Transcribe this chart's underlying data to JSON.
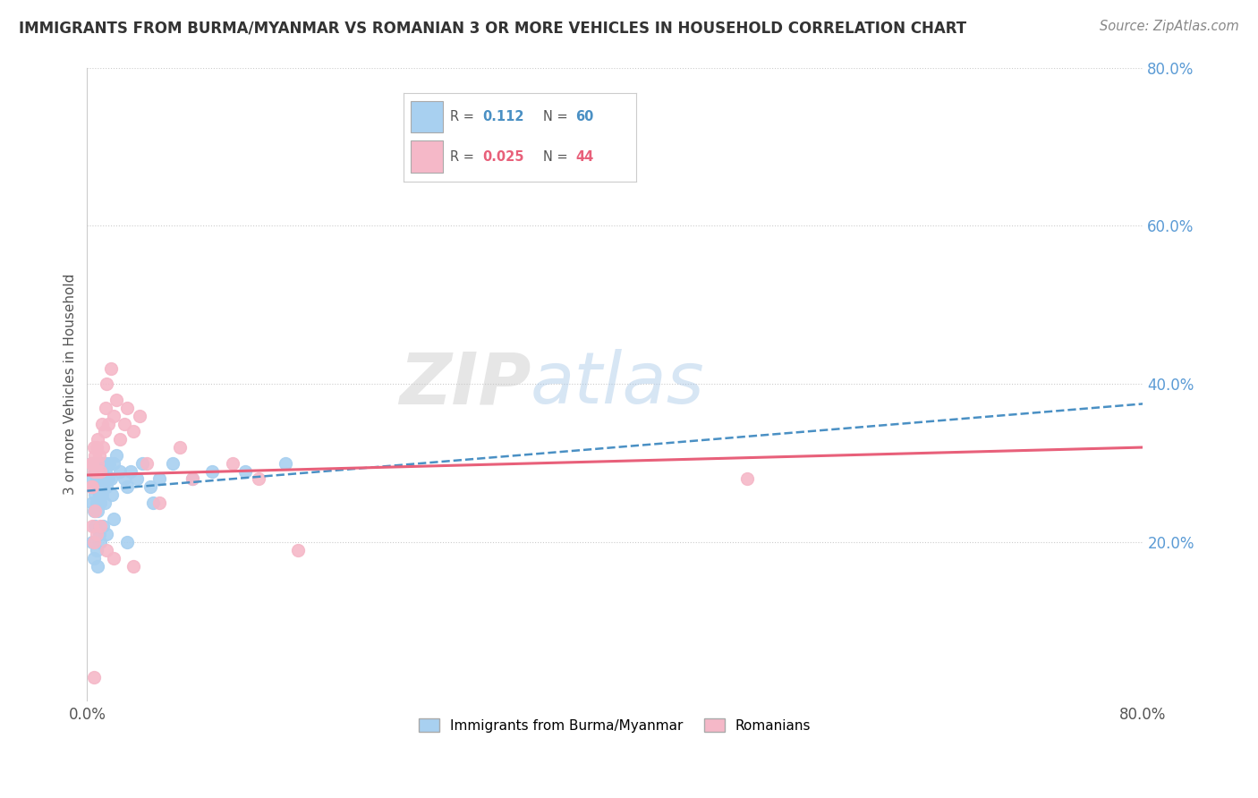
{
  "title": "IMMIGRANTS FROM BURMA/MYANMAR VS ROMANIAN 3 OR MORE VEHICLES IN HOUSEHOLD CORRELATION CHART",
  "source": "Source: ZipAtlas.com",
  "ylabel": "3 or more Vehicles in Household",
  "xlim": [
    0,
    0.8
  ],
  "ylim": [
    0,
    0.8
  ],
  "blue_R": 0.112,
  "blue_N": 60,
  "pink_R": 0.025,
  "pink_N": 44,
  "blue_color": "#A8D0F0",
  "pink_color": "#F5B8C8",
  "blue_line_color": "#4A90C4",
  "pink_line_color": "#E8607A",
  "background_color": "#FFFFFF",
  "grid_color": "#CCCCCC",
  "blue_line_start_y": 0.265,
  "blue_line_end_y": 0.375,
  "pink_line_start_y": 0.285,
  "pink_line_end_y": 0.32,
  "blue_x": [
    0.003,
    0.003,
    0.004,
    0.004,
    0.005,
    0.005,
    0.005,
    0.006,
    0.006,
    0.007,
    0.007,
    0.007,
    0.008,
    0.008,
    0.008,
    0.009,
    0.009,
    0.01,
    0.01,
    0.01,
    0.011,
    0.011,
    0.012,
    0.012,
    0.013,
    0.013,
    0.014,
    0.015,
    0.015,
    0.016,
    0.017,
    0.018,
    0.019,
    0.02,
    0.022,
    0.025,
    0.028,
    0.03,
    0.033,
    0.038,
    0.042,
    0.048,
    0.055,
    0.065,
    0.08,
    0.095,
    0.12,
    0.15,
    0.004,
    0.005,
    0.006,
    0.007,
    0.008,
    0.009,
    0.01,
    0.012,
    0.015,
    0.02,
    0.03,
    0.05
  ],
  "blue_y": [
    0.3,
    0.27,
    0.28,
    0.25,
    0.3,
    0.27,
    0.24,
    0.29,
    0.26,
    0.3,
    0.28,
    0.25,
    0.29,
    0.27,
    0.24,
    0.28,
    0.26,
    0.3,
    0.28,
    0.25,
    0.29,
    0.26,
    0.3,
    0.27,
    0.28,
    0.25,
    0.29,
    0.3,
    0.27,
    0.28,
    0.3,
    0.28,
    0.26,
    0.3,
    0.31,
    0.29,
    0.28,
    0.27,
    0.29,
    0.28,
    0.3,
    0.27,
    0.28,
    0.3,
    0.28,
    0.29,
    0.29,
    0.3,
    0.2,
    0.18,
    0.22,
    0.19,
    0.17,
    0.21,
    0.2,
    0.22,
    0.21,
    0.23,
    0.2,
    0.25
  ],
  "pink_x": [
    0.003,
    0.003,
    0.004,
    0.004,
    0.005,
    0.005,
    0.006,
    0.007,
    0.007,
    0.008,
    0.008,
    0.009,
    0.01,
    0.011,
    0.012,
    0.013,
    0.014,
    0.015,
    0.016,
    0.018,
    0.02,
    0.022,
    0.025,
    0.028,
    0.03,
    0.035,
    0.04,
    0.045,
    0.055,
    0.07,
    0.08,
    0.11,
    0.13,
    0.16,
    0.004,
    0.005,
    0.006,
    0.007,
    0.01,
    0.015,
    0.02,
    0.035,
    0.5,
    0.005
  ],
  "pink_y": [
    0.3,
    0.27,
    0.3,
    0.27,
    0.32,
    0.29,
    0.31,
    0.32,
    0.29,
    0.33,
    0.3,
    0.31,
    0.29,
    0.35,
    0.32,
    0.34,
    0.37,
    0.4,
    0.35,
    0.42,
    0.36,
    0.38,
    0.33,
    0.35,
    0.37,
    0.34,
    0.36,
    0.3,
    0.25,
    0.32,
    0.28,
    0.3,
    0.28,
    0.19,
    0.22,
    0.2,
    0.24,
    0.21,
    0.22,
    0.19,
    0.18,
    0.17,
    0.28,
    0.03
  ]
}
